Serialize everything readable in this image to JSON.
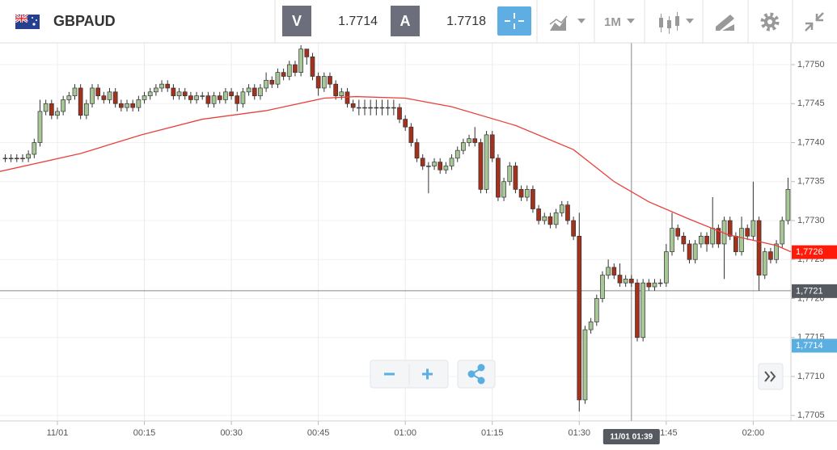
{
  "header": {
    "symbol": "GBPAUD",
    "bid_label": "V",
    "bid": "1.7714",
    "ask_label": "A",
    "ask": "1.7718",
    "timeframe": "1M"
  },
  "chart_data": {
    "type": "candlestick",
    "up_color": "#a7c796",
    "down_color": "#a3311c",
    "xlim": [
      -9.9,
      126.5
    ],
    "ylim": [
      1.77043,
      1.77528
    ],
    "xticks": [
      {
        "value": 0,
        "label": "11/01"
      },
      {
        "value": 15,
        "label": "00:15"
      },
      {
        "value": 30,
        "label": "00:30"
      },
      {
        "value": 45,
        "label": "00:45"
      },
      {
        "value": 60,
        "label": "01:00"
      },
      {
        "value": 75,
        "label": "01:15"
      },
      {
        "value": 90,
        "label": "01:30"
      },
      {
        "value": 105,
        "label": "01:45"
      },
      {
        "value": 120,
        "label": "02:00"
      }
    ],
    "yticks": [
      {
        "value": 1.775,
        "label": "1,7750"
      },
      {
        "value": 1.7745,
        "label": "1,7745"
      },
      {
        "value": 1.774,
        "label": "1,7740"
      },
      {
        "value": 1.7735,
        "label": "1,7735"
      },
      {
        "value": 1.773,
        "label": "1,7730"
      },
      {
        "value": 1.7725,
        "label": "1,7725"
      },
      {
        "value": 1.772,
        "label": "1,7720"
      },
      {
        "value": 1.7715,
        "label": "1,7715"
      },
      {
        "value": 1.771,
        "label": "1,7710"
      },
      {
        "value": 1.7705,
        "label": "1,7705"
      }
    ],
    "grid": true,
    "candles": [
      [
        -9,
        1.7738,
        1.77385,
        1.77375,
        1.7738
      ],
      [
        -8,
        1.7738,
        1.77385,
        1.77375,
        1.7738
      ],
      [
        -7,
        1.7738,
        1.77385,
        1.77375,
        1.7738
      ],
      [
        -6,
        1.7738,
        1.77385,
        1.77375,
        1.7738
      ],
      [
        -5,
        1.7738,
        1.7739,
        1.77375,
        1.77385
      ],
      [
        -4,
        1.77385,
        1.77405,
        1.7738,
        1.774
      ],
      [
        -3,
        1.774,
        1.77455,
        1.77395,
        1.7744
      ],
      [
        -2,
        1.7744,
        1.77455,
        1.77435,
        1.7745
      ],
      [
        -1,
        1.7745,
        1.77455,
        1.7743,
        1.77435
      ],
      [
        0,
        1.77435,
        1.77445,
        1.7743,
        1.7744
      ],
      [
        1,
        1.7744,
        1.7746,
        1.77435,
        1.77455
      ],
      [
        2,
        1.77455,
        1.77465,
        1.7745,
        1.7746
      ],
      [
        3,
        1.7746,
        1.77475,
        1.77455,
        1.7747
      ],
      [
        4,
        1.7747,
        1.77475,
        1.7743,
        1.77435
      ],
      [
        5,
        1.77435,
        1.77455,
        1.7743,
        1.7745
      ],
      [
        6,
        1.7745,
        1.77475,
        1.77445,
        1.7747
      ],
      [
        7,
        1.7747,
        1.77475,
        1.77455,
        1.7746
      ],
      [
        8,
        1.7746,
        1.77465,
        1.7745,
        1.77455
      ],
      [
        9,
        1.77455,
        1.7747,
        1.7745,
        1.77465
      ],
      [
        10,
        1.77465,
        1.7747,
        1.77445,
        1.7745
      ],
      [
        11,
        1.7745,
        1.77455,
        1.7744,
        1.77445
      ],
      [
        12,
        1.77445,
        1.77455,
        1.7744,
        1.7745
      ],
      [
        13,
        1.7745,
        1.77455,
        1.7744,
        1.77445
      ],
      [
        14,
        1.77445,
        1.7746,
        1.7744,
        1.77455
      ],
      [
        15,
        1.77455,
        1.77465,
        1.7745,
        1.7746
      ],
      [
        16,
        1.7746,
        1.7747,
        1.77455,
        1.77465
      ],
      [
        17,
        1.77465,
        1.77475,
        1.7746,
        1.7747
      ],
      [
        18,
        1.7747,
        1.7748,
        1.77465,
        1.77475
      ],
      [
        19,
        1.77475,
        1.7748,
        1.77465,
        1.7747
      ],
      [
        20,
        1.7747,
        1.77475,
        1.77455,
        1.7746
      ],
      [
        21,
        1.7746,
        1.7747,
        1.77455,
        1.77465
      ],
      [
        22,
        1.77465,
        1.7747,
        1.77455,
        1.7746
      ],
      [
        23,
        1.7746,
        1.77465,
        1.7745,
        1.77455
      ],
      [
        24,
        1.77455,
        1.77465,
        1.7745,
        1.7746
      ],
      [
        25,
        1.7746,
        1.77465,
        1.77455,
        1.7746
      ],
      [
        26,
        1.7746,
        1.77465,
        1.77445,
        1.7745
      ],
      [
        27,
        1.7745,
        1.77465,
        1.77445,
        1.7746
      ],
      [
        28,
        1.7746,
        1.77465,
        1.7745,
        1.77455
      ],
      [
        29,
        1.77455,
        1.7747,
        1.7745,
        1.77465
      ],
      [
        30,
        1.77465,
        1.7747,
        1.77455,
        1.7746
      ],
      [
        31,
        1.7746,
        1.77465,
        1.7744,
        1.7745
      ],
      [
        32,
        1.7745,
        1.7747,
        1.77445,
        1.77465
      ],
      [
        33,
        1.77465,
        1.77475,
        1.7746,
        1.7747
      ],
      [
        34,
        1.7747,
        1.77475,
        1.77455,
        1.7746
      ],
      [
        35,
        1.7746,
        1.77475,
        1.77455,
        1.7747
      ],
      [
        36,
        1.7747,
        1.7749,
        1.77465,
        1.7748
      ],
      [
        37,
        1.7748,
        1.77485,
        1.7747,
        1.77475
      ],
      [
        38,
        1.77475,
        1.77495,
        1.7747,
        1.7749
      ],
      [
        39,
        1.7749,
        1.77495,
        1.7748,
        1.77485
      ],
      [
        40,
        1.77485,
        1.77505,
        1.7748,
        1.775
      ],
      [
        41,
        1.775,
        1.77505,
        1.77485,
        1.7749
      ],
      [
        42,
        1.7749,
        1.77525,
        1.77485,
        1.7752
      ],
      [
        43,
        1.7752,
        1.7752,
        1.775,
        1.7751
      ],
      [
        44,
        1.7751,
        1.77515,
        1.7748,
        1.77485
      ],
      [
        45,
        1.77485,
        1.7749,
        1.7746,
        1.7747
      ],
      [
        46,
        1.7747,
        1.7749,
        1.77465,
        1.77485
      ],
      [
        47,
        1.77485,
        1.7749,
        1.7747,
        1.77475
      ],
      [
        48,
        1.77475,
        1.7748,
        1.77455,
        1.7746
      ],
      [
        49,
        1.7746,
        1.7747,
        1.77455,
        1.77465
      ],
      [
        50,
        1.77465,
        1.7747,
        1.77445,
        1.7745
      ],
      [
        51,
        1.7745,
        1.77455,
        1.7744,
        1.77445
      ],
      [
        52,
        1.77445,
        1.77455,
        1.77435,
        1.77445
      ],
      [
        53,
        1.77445,
        1.77455,
        1.77435,
        1.77445
      ],
      [
        54,
        1.77445,
        1.77455,
        1.77435,
        1.77445
      ],
      [
        55,
        1.77445,
        1.77455,
        1.77435,
        1.77445
      ],
      [
        56,
        1.77445,
        1.77455,
        1.77435,
        1.77445
      ],
      [
        57,
        1.77445,
        1.77455,
        1.77435,
        1.77445
      ],
      [
        58,
        1.77445,
        1.77455,
        1.77435,
        1.77445
      ],
      [
        59,
        1.77445,
        1.7745,
        1.77425,
        1.7743
      ],
      [
        60,
        1.7743,
        1.77435,
        1.77415,
        1.7742
      ],
      [
        61,
        1.7742,
        1.77425,
        1.77395,
        1.774
      ],
      [
        62,
        1.774,
        1.77405,
        1.77375,
        1.7738
      ],
      [
        63,
        1.7738,
        1.77385,
        1.77365,
        1.7737
      ],
      [
        64,
        1.7737,
        1.77375,
        1.77335,
        1.7737
      ],
      [
        65,
        1.7737,
        1.7738,
        1.77365,
        1.77375
      ],
      [
        66,
        1.77375,
        1.7738,
        1.7736,
        1.77365
      ],
      [
        67,
        1.77365,
        1.77375,
        1.7736,
        1.7737
      ],
      [
        68,
        1.7737,
        1.77385,
        1.77365,
        1.7738
      ],
      [
        69,
        1.7738,
        1.77395,
        1.77375,
        1.7739
      ],
      [
        70,
        1.7739,
        1.77405,
        1.77385,
        1.774
      ],
      [
        71,
        1.774,
        1.7741,
        1.77395,
        1.77405
      ],
      [
        72,
        1.77405,
        1.7742,
        1.77395,
        1.774
      ],
      [
        73,
        1.774,
        1.77405,
        1.77335,
        1.7734
      ],
      [
        74,
        1.7734,
        1.77415,
        1.77335,
        1.7741
      ],
      [
        75,
        1.7741,
        1.77415,
        1.77375,
        1.7738
      ],
      [
        76,
        1.7738,
        1.77385,
        1.77325,
        1.7733
      ],
      [
        77,
        1.7733,
        1.77355,
        1.77325,
        1.7735
      ],
      [
        78,
        1.7735,
        1.77375,
        1.77345,
        1.7737
      ],
      [
        79,
        1.7737,
        1.77375,
        1.77335,
        1.7734
      ],
      [
        80,
        1.7734,
        1.77345,
        1.77325,
        1.7733
      ],
      [
        81,
        1.7733,
        1.77345,
        1.77325,
        1.7734
      ],
      [
        82,
        1.7734,
        1.77345,
        1.7731,
        1.77315
      ],
      [
        83,
        1.77315,
        1.7732,
        1.77295,
        1.773
      ],
      [
        84,
        1.773,
        1.7731,
        1.77295,
        1.77305
      ],
      [
        85,
        1.77305,
        1.7731,
        1.7729,
        1.77295
      ],
      [
        86,
        1.77295,
        1.77315,
        1.7729,
        1.7731
      ],
      [
        87,
        1.7731,
        1.77325,
        1.77305,
        1.7732
      ],
      [
        88,
        1.7732,
        1.77325,
        1.77295,
        1.773
      ],
      [
        89,
        1.773,
        1.77305,
        1.77275,
        1.7728
      ],
      [
        90,
        1.7728,
        1.7731,
        1.77055,
        1.7707
      ],
      [
        91,
        1.7707,
        1.77165,
        1.77065,
        1.7716
      ],
      [
        92,
        1.7716,
        1.77175,
        1.77155,
        1.7717
      ],
      [
        93,
        1.7717,
        1.77205,
        1.77165,
        1.772
      ],
      [
        94,
        1.772,
        1.77235,
        1.77195,
        1.7723
      ],
      [
        95,
        1.7723,
        1.7725,
        1.77225,
        1.7724
      ],
      [
        96,
        1.7724,
        1.77245,
        1.77225,
        1.7723
      ],
      [
        97,
        1.7723,
        1.77245,
        1.77215,
        1.7722
      ],
      [
        98,
        1.7722,
        1.7723,
        1.77215,
        1.77225
      ],
      [
        99,
        1.77225,
        1.7723,
        1.77215,
        1.7722
      ],
      [
        100,
        1.7722,
        1.77225,
        1.77145,
        1.7715
      ],
      [
        101,
        1.7715,
        1.77225,
        1.77145,
        1.7722
      ],
      [
        102,
        1.7722,
        1.77225,
        1.7721,
        1.77215
      ],
      [
        103,
        1.77215,
        1.77225,
        1.7721,
        1.7722
      ],
      [
        104,
        1.7722,
        1.77225,
        1.77215,
        1.7722
      ],
      [
        105,
        1.7722,
        1.7727,
        1.77215,
        1.7726
      ],
      [
        106,
        1.7726,
        1.7731,
        1.77255,
        1.7729
      ],
      [
        107,
        1.7729,
        1.77295,
        1.77275,
        1.7728
      ],
      [
        108,
        1.7728,
        1.77285,
        1.7726,
        1.7727
      ],
      [
        109,
        1.7727,
        1.77275,
        1.77245,
        1.7725
      ],
      [
        110,
        1.7725,
        1.77275,
        1.77245,
        1.7727
      ],
      [
        111,
        1.7727,
        1.77285,
        1.77265,
        1.7728
      ],
      [
        112,
        1.7728,
        1.77285,
        1.7726,
        1.7727
      ],
      [
        113,
        1.7727,
        1.7733,
        1.77265,
        1.7729
      ],
      [
        114,
        1.7729,
        1.77295,
        1.77265,
        1.7727
      ],
      [
        115,
        1.7727,
        1.77305,
        1.77225,
        1.773
      ],
      [
        116,
        1.773,
        1.77305,
        1.77275,
        1.7728
      ],
      [
        117,
        1.7728,
        1.77285,
        1.77255,
        1.7726
      ],
      [
        118,
        1.7726,
        1.77305,
        1.77255,
        1.7729
      ],
      [
        119,
        1.7729,
        1.77295,
        1.77275,
        1.7728
      ],
      [
        120,
        1.7728,
        1.7735,
        1.77275,
        1.773
      ],
      [
        121,
        1.773,
        1.77305,
        1.7721,
        1.7723
      ],
      [
        122,
        1.7723,
        1.77265,
        1.77225,
        1.7726
      ],
      [
        123,
        1.7726,
        1.77265,
        1.77245,
        1.7725
      ],
      [
        124,
        1.7725,
        1.77275,
        1.77245,
        1.7727
      ],
      [
        125,
        1.7727,
        1.77305,
        1.77265,
        1.773
      ],
      [
        126,
        1.773,
        1.77355,
        1.77295,
        1.7734
      ]
    ],
    "moving_average": {
      "color": "#e8413c",
      "x": [
        -9.9,
        4,
        14.5,
        25,
        36,
        46,
        51.5,
        60,
        68,
        79,
        89,
        96,
        102,
        108.6,
        115.6,
        124,
        126.5
      ],
      "values": [
        1.77363,
        1.77386,
        1.7741,
        1.7743,
        1.77441,
        1.77457,
        1.77459,
        1.77457,
        1.77446,
        1.77422,
        1.77391,
        1.7735,
        1.77324,
        1.77303,
        1.77282,
        1.77268,
        1.7726
      ]
    },
    "price_markers": [
      {
        "value": 1.7726,
        "label": "1,7726",
        "color": "#ff1a0a"
      },
      {
        "value": 1.7714,
        "label": "1,7714",
        "color": "#5aaee0"
      }
    ],
    "crosshair": {
      "x": {
        "value": 99,
        "label": "11/01 01:39"
      },
      "y": {
        "value": 1.7721,
        "label": "1,7721"
      },
      "color": "#555a60"
    }
  }
}
